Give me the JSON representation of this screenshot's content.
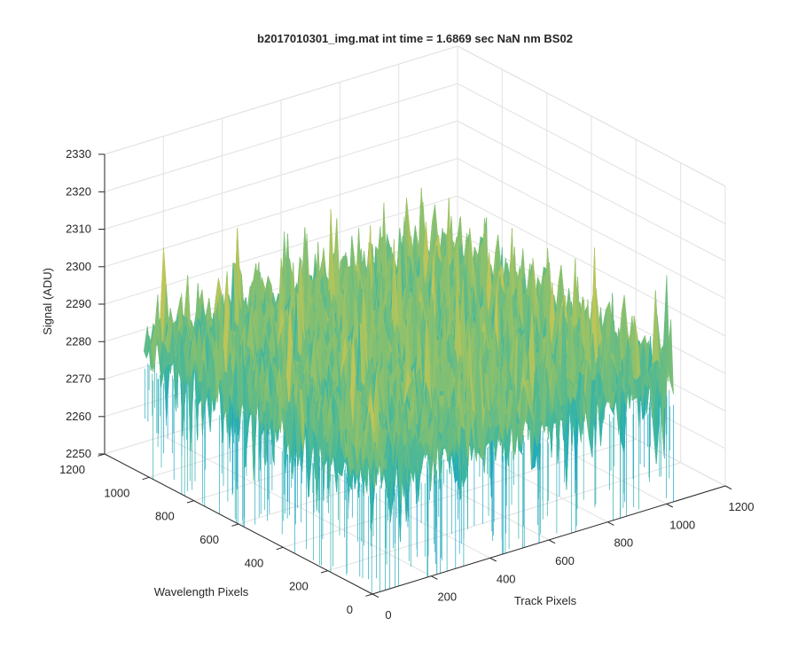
{
  "chart_data": {
    "type": "surface",
    "title": "b2017010301_img.mat int time = 1.6869 sec  NaN nm BS02",
    "xlabel": "Track Pixels",
    "ylabel": "Wavelength Pixels",
    "zlabel": "Signal (ADU)",
    "xlim": [
      0,
      1200
    ],
    "ylim": [
      0,
      1200
    ],
    "zlim": [
      2250,
      2330
    ],
    "x_ticks": [
      0,
      200,
      400,
      600,
      800,
      1000,
      1200
    ],
    "y_ticks": [
      0,
      200,
      400,
      600,
      800,
      1000,
      1200
    ],
    "z_ticks": [
      2250,
      2260,
      2270,
      2280,
      2290,
      2300,
      2310,
      2320,
      2330
    ],
    "x_tick_labels": [
      "0",
      "200",
      "400",
      "600",
      "800",
      "1000",
      "1200"
    ],
    "y_tick_labels": [
      "0",
      "200",
      "400",
      "600",
      "800",
      "1000",
      "1200"
    ],
    "z_tick_labels": [
      "2250",
      "2260",
      "2270",
      "2280",
      "2290",
      "2300",
      "2310",
      "2320",
      "2330"
    ],
    "surface": {
      "x_extent": [
        0,
        1024
      ],
      "y_extent": [
        0,
        1024
      ],
      "mean_signal": 2285,
      "noise_amplitude": 12,
      "spike_amplitude": 25,
      "colormap": "parula"
    },
    "grid": true,
    "view": "3d-default"
  },
  "colors": {
    "axis": "#262626",
    "grid": "#e1e1e1",
    "background": "#ffffff",
    "colormap_low": "#1aa0d6",
    "colormap_mid": "#3fb6a0",
    "colormap_high": "#e2c64b"
  }
}
